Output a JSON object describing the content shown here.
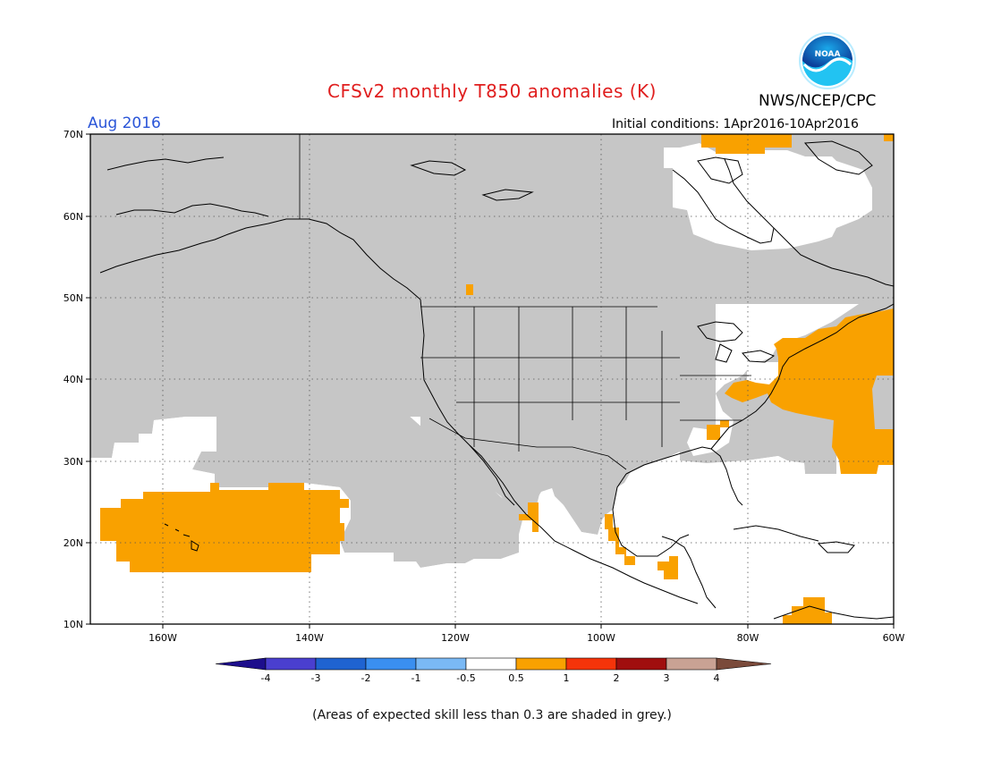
{
  "header": {
    "title": "CFSv2 monthly T850 anomalies (K)",
    "agency": "NWS/NCEP/CPC",
    "logo_text": "NOAA",
    "valid_month": "Aug 2016",
    "initial_conditions": "Initial conditions: 1Apr2016-10Apr2016"
  },
  "map": {
    "domain": {
      "lon_min": -170,
      "lon_max": -60,
      "lat_min": 10,
      "lat_max": 70
    },
    "lat_ticks": [
      "10N",
      "20N",
      "30N",
      "40N",
      "50N",
      "60N",
      "70N"
    ],
    "lon_ticks": [
      "160W",
      "140W",
      "120W",
      "100W",
      "80W",
      "60W"
    ],
    "colors": {
      "grey_mask": "#c6c6c6",
      "anomaly_0_5_to_1": "#f9a100",
      "no_signal": "#ffffff"
    },
    "shaded_regions": [
      {
        "label": "0.5 to 1 K",
        "area": "central North Pacific near Hawaii"
      },
      {
        "label": "0.5 to 1 K",
        "area": "US East Coast / western Atlantic"
      },
      {
        "label": "0.5 to 1 K",
        "area": "Baffin Bay / northern Canada"
      },
      {
        "label": "0.5 to 1 K",
        "area": "Gulf of California / Mexico coasts"
      },
      {
        "label": "0.5 to 1 K",
        "area": "Caribbean Sea"
      }
    ]
  },
  "colorbar": {
    "boundaries": [
      "-4",
      "-3",
      "-2",
      "-1",
      "-0.5",
      "0.5",
      "1",
      "2",
      "3",
      "4"
    ],
    "colors": [
      "#1d0e8c",
      "#4a3fcf",
      "#1f63d1",
      "#3a8ff0",
      "#7ab9f5",
      "#ffffff",
      "#f9a100",
      "#f5340a",
      "#a00e0e",
      "#c9a294",
      "#7a4a3a"
    ]
  },
  "footer_note": "(Areas of expected skill less than 0.3 are shaded in grey.)"
}
